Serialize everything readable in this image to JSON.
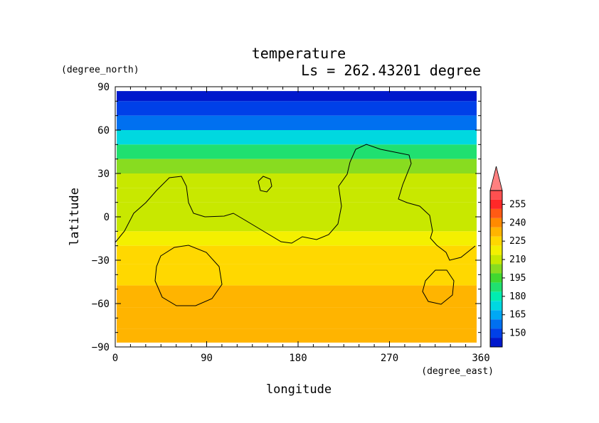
{
  "chart_data": {
    "type": "heatmap",
    "title": "temperature",
    "subtitle": "Ls = 262.43201 degree",
    "xlabel": "longitude",
    "ylabel": "latitude",
    "x_units": "(degree_east)",
    "y_units": "(degree_north)",
    "xlim": [
      0,
      360
    ],
    "ylim": [
      -90,
      90
    ],
    "x_ticks": [
      "0",
      "90",
      "180",
      "270",
      "360"
    ],
    "y_ticks": [
      "90",
      "60",
      "30",
      "0",
      "−30",
      "−60",
      "−90"
    ],
    "colorbar": {
      "levels": [
        150,
        165,
        180,
        195,
        210,
        225,
        240,
        255
      ],
      "labels": [
        "150",
        "165",
        "180",
        "195",
        "210",
        "225",
        "240",
        "255"
      ],
      "colors": [
        "#0018cc",
        "#0040e8",
        "#0070f0",
        "#00a8f4",
        "#00d8e0",
        "#00ecb0",
        "#20e070",
        "#40d830",
        "#88dc20",
        "#c8e800",
        "#f4f000",
        "#ffd800",
        "#ffb400",
        "#ff8a00",
        "#ff5a14",
        "#ff2828",
        "#ff5050",
        "#ff8080"
      ]
    },
    "zonal_profile": [
      {
        "lat": 85,
        "value": 148
      },
      {
        "lat": 75,
        "value": 152
      },
      {
        "lat": 65,
        "value": 162
      },
      {
        "lat": 55,
        "value": 178
      },
      {
        "lat": 45,
        "value": 192
      },
      {
        "lat": 35,
        "value": 203
      },
      {
        "lat": 25,
        "value": 210
      },
      {
        "lat": 15,
        "value": 214
      },
      {
        "lat": 5,
        "value": 213
      },
      {
        "lat": -5,
        "value": 215
      },
      {
        "lat": -15,
        "value": 218
      },
      {
        "lat": -25,
        "value": 226
      },
      {
        "lat": -40,
        "value": 232
      },
      {
        "lat": -55,
        "value": 236
      },
      {
        "lat": -70,
        "value": 234
      },
      {
        "lat": -85,
        "value": 233
      }
    ],
    "grid": false
  }
}
